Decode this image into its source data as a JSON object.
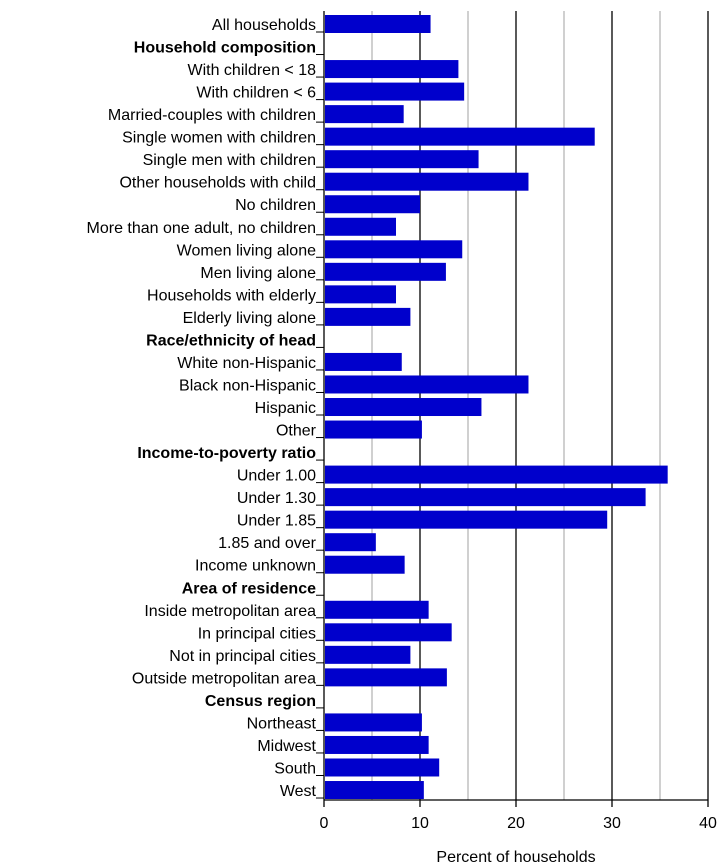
{
  "colors": {
    "bar": "#0000cc",
    "heading": "#1f1fd6",
    "text": "#000000",
    "grid": "#000000",
    "background": "#ffffff"
  },
  "chart_data": {
    "type": "bar",
    "orientation": "horizontal",
    "title": "",
    "xlabel": "Percent of households",
    "ylabel": "",
    "xlim": [
      0,
      40
    ],
    "xticks": [
      "0",
      "10",
      "20",
      "30",
      "40"
    ],
    "grid": "vertical gridlines every 5, major every 10",
    "rows": [
      {
        "label": "All households",
        "value": 11.1
      },
      {
        "label": "Household composition",
        "heading": true
      },
      {
        "label": "With children < 18",
        "value": 14.0
      },
      {
        "label": "With children < 6",
        "value": 14.6
      },
      {
        "label": "Married-couples with children",
        "value": 8.3
      },
      {
        "label": "Single women with children",
        "value": 28.2
      },
      {
        "label": "Single men with children",
        "value": 16.1
      },
      {
        "label": "Other households with child",
        "value": 21.3
      },
      {
        "label": "No children",
        "value": 10.0
      },
      {
        "label": "More than one adult, no children",
        "value": 7.5
      },
      {
        "label": "Women living alone",
        "value": 14.4
      },
      {
        "label": "Men living alone",
        "value": 12.7
      },
      {
        "label": "Households with elderly",
        "value": 7.5
      },
      {
        "label": "Elderly living alone",
        "value": 9.0
      },
      {
        "label": "Race/ethnicity of head",
        "heading": true
      },
      {
        "label": "White non-Hispanic",
        "value": 8.1
      },
      {
        "label": "Black non-Hispanic",
        "value": 21.3
      },
      {
        "label": "Hispanic",
        "value": 16.4
      },
      {
        "label": "Other",
        "value": 10.2
      },
      {
        "label": "Income-to-poverty ratio",
        "heading": true
      },
      {
        "label": "Under 1.00",
        "value": 35.8
      },
      {
        "label": "Under 1.30",
        "value": 33.5
      },
      {
        "label": "Under 1.85",
        "value": 29.5
      },
      {
        "label": "1.85 and over",
        "value": 5.4
      },
      {
        "label": "Income unknown",
        "value": 8.4
      },
      {
        "label": "Area of residence",
        "heading": true
      },
      {
        "label": "Inside metropolitan area",
        "value": 10.9
      },
      {
        "label": "In principal cities",
        "value": 13.3
      },
      {
        "label": "Not in principal cities",
        "value": 9.0
      },
      {
        "label": "Outside metropolitan area",
        "value": 12.8
      },
      {
        "label": "Census region",
        "heading": true
      },
      {
        "label": "Northeast",
        "value": 10.2
      },
      {
        "label": "Midwest",
        "value": 10.9
      },
      {
        "label": "South",
        "value": 12.0
      },
      {
        "label": "West",
        "value": 10.4
      }
    ]
  }
}
